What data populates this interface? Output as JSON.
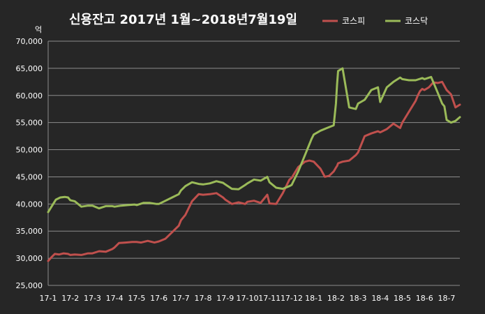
{
  "chart_data": {
    "type": "line",
    "title": "신용잔고 2017년 1월~2018년7월19일",
    "y_unit": "억",
    "ylim": [
      25000,
      70000
    ],
    "y_ticks": [
      25000,
      30000,
      35000,
      40000,
      45000,
      50000,
      55000,
      60000,
      65000,
      70000
    ],
    "y_tick_labels": [
      "25,000",
      "30,000",
      "35,000",
      "40,000",
      "45,000",
      "50,000",
      "55,000",
      "60,000",
      "65,000",
      "70,000"
    ],
    "grid": true,
    "legend_position": "top-right",
    "x_tick_labels": [
      "17-1",
      "17-2",
      "17-3",
      "17-4",
      "17-5",
      "17-6",
      "17-7",
      "17-8",
      "17-9",
      "17-10",
      "17-11",
      "17-12",
      "18-1",
      "18-2",
      "18-3",
      "18-4",
      "18-5",
      "18-6",
      "18-7"
    ],
    "x_range": [
      0,
      18.6
    ],
    "series": [
      {
        "name": "코스피",
        "color": "#c0504d",
        "x": [
          0.0,
          0.15,
          0.3,
          0.5,
          0.7,
          0.9,
          1.0,
          1.2,
          1.5,
          1.8,
          2.0,
          2.3,
          2.6,
          2.9,
          3.0,
          3.2,
          3.5,
          3.8,
          4.0,
          4.2,
          4.5,
          4.8,
          5.0,
          5.3,
          5.6,
          5.9,
          6.0,
          6.2,
          6.5,
          6.8,
          7.0,
          7.3,
          7.6,
          7.9,
          8.0,
          8.3,
          8.6,
          8.9,
          9.0,
          9.3,
          9.6,
          9.9,
          10.0,
          10.3,
          10.6,
          10.9,
          11.0,
          11.3,
          11.6,
          11.8,
          12.0,
          12.3,
          12.5,
          12.7,
          12.9,
          13.0,
          13.05,
          13.1,
          13.3,
          13.6,
          13.9,
          14.0,
          14.3,
          14.6,
          14.9,
          15.0,
          15.3,
          15.6,
          15.9,
          16.0,
          16.3,
          16.6,
          16.7,
          16.8,
          16.9,
          17.0,
          17.2,
          17.4,
          17.6,
          17.8,
          18.0,
          18.2,
          18.4,
          18.6
        ],
        "values": [
          29500,
          30200,
          30800,
          30700,
          30900,
          30800,
          30600,
          30700,
          30600,
          30900,
          30900,
          31300,
          31200,
          31700,
          32000,
          32800,
          32900,
          33000,
          33000,
          32900,
          33200,
          32900,
          33100,
          33600,
          34800,
          36000,
          37000,
          38000,
          40500,
          41800,
          41700,
          41800,
          42000,
          41200,
          40800,
          40000,
          40300,
          40000,
          40400,
          40600,
          40200,
          41700,
          40100,
          40000,
          42000,
          44500,
          44800,
          46800,
          47800,
          48000,
          47800,
          46500,
          45000,
          45200,
          46000,
          46700,
          47000,
          47500,
          47800,
          48000,
          49000,
          49500,
          52500,
          53000,
          53400,
          53200,
          53800,
          54800,
          54000,
          55000,
          57000,
          59000,
          60000,
          60800,
          61200,
          61000,
          61500,
          62400,
          62300,
          62500,
          61000,
          60200,
          57800,
          58300
        ]
      },
      {
        "name": "코스닥",
        "color": "#9bbb59",
        "x": [
          0.0,
          0.15,
          0.35,
          0.55,
          0.75,
          0.9,
          1.0,
          1.2,
          1.5,
          1.8,
          2.0,
          2.3,
          2.6,
          2.9,
          3.0,
          3.3,
          3.6,
          3.9,
          4.0,
          4.3,
          4.6,
          4.9,
          5.0,
          5.3,
          5.6,
          5.9,
          6.0,
          6.2,
          6.5,
          6.8,
          7.0,
          7.3,
          7.6,
          7.9,
          8.0,
          8.3,
          8.6,
          8.9,
          9.0,
          9.3,
          9.6,
          9.9,
          10.0,
          10.3,
          10.6,
          10.9,
          11.0,
          11.3,
          11.6,
          11.9,
          12.0,
          12.3,
          12.6,
          12.9,
          13.0,
          13.05,
          13.1,
          13.3,
          13.6,
          13.9,
          14.0,
          14.3,
          14.6,
          14.9,
          15.0,
          15.3,
          15.6,
          15.9,
          16.0,
          16.3,
          16.6,
          16.9,
          17.0,
          17.3,
          17.6,
          17.8,
          17.9,
          18.0,
          18.2,
          18.4,
          18.6
        ],
        "values": [
          38500,
          39500,
          40800,
          41200,
          41300,
          41200,
          40700,
          40500,
          39500,
          39700,
          39700,
          39200,
          39600,
          39600,
          39500,
          39700,
          39800,
          39900,
          39800,
          40200,
          40200,
          40000,
          40000,
          40600,
          41200,
          41800,
          42500,
          43300,
          44000,
          43700,
          43600,
          43800,
          44200,
          43900,
          43600,
          42800,
          42700,
          43500,
          43800,
          44500,
          44300,
          45000,
          44000,
          43000,
          42800,
          43300,
          43500,
          46000,
          49000,
          52000,
          52800,
          53500,
          54000,
          54500,
          58500,
          62000,
          64500,
          65000,
          57800,
          57500,
          58500,
          59200,
          61000,
          61500,
          58800,
          61500,
          62500,
          63300,
          63000,
          62800,
          62800,
          63200,
          63000,
          63400,
          60500,
          58500,
          58000,
          55500,
          55000,
          55300,
          56000
        ]
      }
    ]
  }
}
